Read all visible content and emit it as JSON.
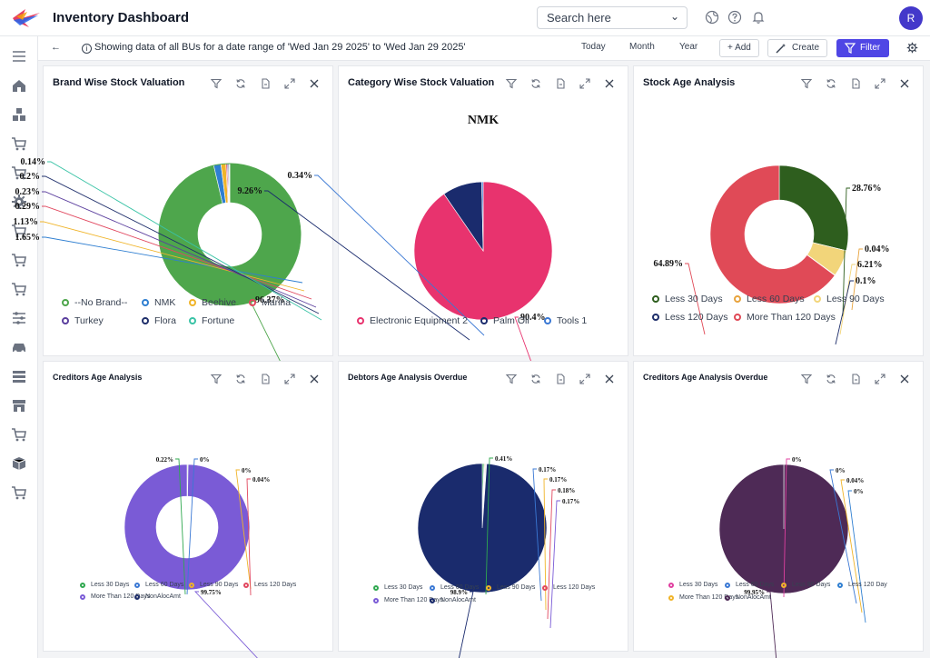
{
  "app": {
    "title": "Inventory Dashboard"
  },
  "header": {
    "search_placeholder": "Search here",
    "avatar_initial": "R"
  },
  "toolbar": {
    "info_text": "Showing data of all BUs for a date range of 'Wed Jan 29 2025' to 'Wed Jan 29 2025'",
    "today": "Today",
    "month": "Month",
    "year": "Year",
    "add": "+ Add",
    "create": "Create",
    "filter": "Filter"
  },
  "colors": {
    "accent": "#4f46e5",
    "avatar": "#4338ca"
  },
  "cards": [
    {
      "title": "Brand Wise Stock Valuation"
    },
    {
      "title": "Category Wise Stock Valuation"
    },
    {
      "title": "Stock Age Analysis"
    },
    {
      "title": "Creditors Age Analysis"
    },
    {
      "title": "Debtors Age Analysis Overdue"
    },
    {
      "title": "Creditors Age Analysis Overdue"
    }
  ],
  "chart_data": [
    {
      "type": "pie",
      "title": "Brand Wise Stock Valuation",
      "donut": true,
      "categories": [
        "--No Brand--",
        "NMK",
        "Beehive",
        "Marina",
        "Turkey",
        "Flora",
        "Fortune"
      ],
      "values": [
        96.37,
        1.65,
        1.13,
        0.29,
        0.23,
        0.2,
        0.14
      ],
      "value_labels": [
        "96.37%",
        "1.65%",
        "1.13%",
        "0.29%",
        "0.23%",
        "0.2%",
        "0.14%"
      ],
      "colors": [
        "#4ea64c",
        "#2f7fd1",
        "#f0b429",
        "#e1485f",
        "#5b3f9e",
        "#1f2f6b",
        "#3ac3a6"
      ],
      "legend": "bottom"
    },
    {
      "type": "pie",
      "title": "NMK",
      "donut": false,
      "categories": [
        "Electronic Equipment 2",
        "Palm Oil",
        "Tools 1"
      ],
      "values": [
        90.4,
        9.26,
        0.34
      ],
      "value_labels": [
        "90.4%",
        "9.26%",
        "0.34%"
      ],
      "colors": [
        "#e8336e",
        "#1a2b6d",
        "#3a78d4"
      ],
      "legend": "bottom"
    },
    {
      "type": "pie",
      "title": "Stock Age Analysis",
      "donut": true,
      "categories": [
        "Less 30 Days",
        "Less 60 Days",
        "Less 90 Days",
        "Less 120 Days",
        "More Than 120 Days"
      ],
      "values": [
        28.76,
        0.04,
        6.21,
        0.1,
        64.89
      ],
      "value_labels": [
        "28.76%",
        "0.04%",
        "6.21%",
        "0.1%",
        "64.89%"
      ],
      "colors": [
        "#2e5e1e",
        "#e8a33d",
        "#f2d57a",
        "#1f2f6b",
        "#e04a57"
      ],
      "legend": "bottom"
    },
    {
      "type": "pie",
      "title": "Creditors Age Analysis",
      "donut": true,
      "categories": [
        "Less 30 Days",
        "Less 60 Days",
        "Less 90 Days",
        "Less 120 Days",
        "More Than 120 Days",
        "NonAlocAmt"
      ],
      "values": [
        0.22,
        0,
        0,
        0.04,
        99.75,
        0
      ],
      "value_labels": [
        "0.22%",
        "0%",
        "0%",
        "0.04%",
        "99.75%",
        "0%"
      ],
      "colors": [
        "#2fa84f",
        "#3a78d4",
        "#f0b429",
        "#e1485f",
        "#7a5bd6",
        "#1f2f6b"
      ],
      "legend": "bottom"
    },
    {
      "type": "pie",
      "title": "Debtors Age Analysis Overdue",
      "donut": false,
      "categories": [
        "Less 30 Days",
        "Less 60 Days",
        "Less 90 Days",
        "Less 120 Days",
        "More Than 120 Days",
        "NonAlocAmt"
      ],
      "values": [
        0.41,
        0.17,
        0.17,
        0.18,
        0.17,
        98.9
      ],
      "value_labels": [
        "0.41%",
        "0.17%",
        "0.17%",
        "0.18%",
        "0.17%",
        "98.9%"
      ],
      "colors": [
        "#2fa84f",
        "#3a78d4",
        "#f0b429",
        "#e1485f",
        "#7a5bd6",
        "#1a2b6d"
      ],
      "legend": "bottom"
    },
    {
      "type": "pie",
      "title": "Creditors Age Analysis Overdue",
      "donut": false,
      "categories": [
        "Less 30 Days",
        "Less 60 Days",
        "Less 90 Days",
        "Less 120 Day",
        "More Than 120 Days",
        "NonAlocAmt"
      ],
      "values": [
        0,
        0,
        0.04,
        0,
        0,
        99.95
      ],
      "value_labels": [
        "0%",
        "0%",
        "0.04%",
        "0%",
        "0%",
        "99.95%"
      ],
      "colors": [
        "#e040a0",
        "#3a78d4",
        "#f0b429",
        "#2f7fd1",
        "#f0b429",
        "#4e2a56"
      ],
      "legend": "bottom"
    }
  ]
}
